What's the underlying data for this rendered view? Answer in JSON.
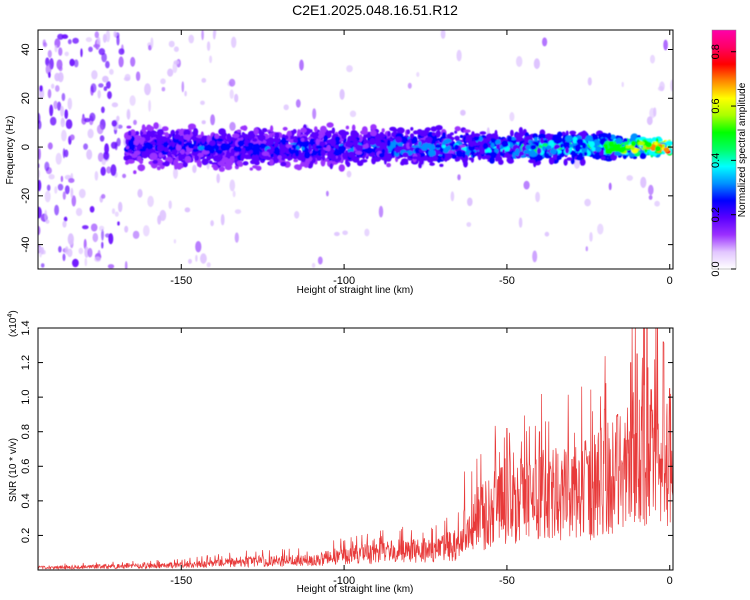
{
  "title": "C2E1.2025.048.16.51.R12",
  "chart_data": [
    {
      "type": "heatmap",
      "xlabel": "Height of straight line (km)",
      "ylabel": "Frequency (Hz)",
      "xlim": [
        -194,
        1
      ],
      "ylim": [
        -50,
        48
      ],
      "xticks": [
        -150,
        -100,
        -50,
        0
      ],
      "yticks": [
        -40,
        -20,
        0,
        20,
        40
      ],
      "colorbar": {
        "label": "Normalized spectral amplitude",
        "range": [
          0,
          0.88
        ],
        "ticks": [
          0.0,
          0.2,
          0.4,
          0.6,
          0.8
        ],
        "colormap": [
          "#ffffff",
          "#e2c6ff",
          "#9b30ff",
          "#5a00ff",
          "#0000ff",
          "#0090ff",
          "#00ffff",
          "#00ff66",
          "#00ff00",
          "#aaff00",
          "#ffff00",
          "#ff8800",
          "#ff0000",
          "#ff0066",
          "#ff00aa"
        ]
      },
      "band": {
        "center_hz": 0,
        "halfwidth_hz": [
          {
            "x": -167,
            "hz": 10
          },
          {
            "x": -100,
            "hz": 9
          },
          {
            "x": -50,
            "hz": 8
          },
          {
            "x": -20,
            "hz": 6
          },
          {
            "x": 0,
            "hz": 4
          }
        ],
        "peak_amplitude": [
          {
            "x": -167,
            "amp": 0.25
          },
          {
            "x": -100,
            "amp": 0.3
          },
          {
            "x": -60,
            "amp": 0.35
          },
          {
            "x": -20,
            "amp": 0.5
          },
          {
            "x": -10,
            "amp": 0.65
          },
          {
            "x": 0,
            "amp": 0.85
          }
        ]
      }
    },
    {
      "type": "line",
      "xlabel": "Height of straight line (km)",
      "ylabel": "SNR (10 * v/v)",
      "yscale_label": "(x10",
      "yscale_exp": "4",
      "xlim": [
        -194,
        1
      ],
      "ylim": [
        0,
        1.4
      ],
      "xticks": [
        -150,
        -100,
        -50,
        0
      ],
      "yticks": [
        0.2,
        0.4,
        0.6,
        0.8,
        1.0,
        1.2,
        1.4
      ],
      "series": [
        {
          "color": "#e83a3a",
          "envelope": [
            {
              "x": -194,
              "y": 0.02
            },
            {
              "x": -170,
              "y": 0.03
            },
            {
              "x": -150,
              "y": 0.04
            },
            {
              "x": -130,
              "y": 0.07
            },
            {
              "x": -110,
              "y": 0.08
            },
            {
              "x": -100,
              "y": 0.12
            },
            {
              "x": -85,
              "y": 0.15
            },
            {
              "x": -70,
              "y": 0.18
            },
            {
              "x": -63,
              "y": 0.22
            },
            {
              "x": -60,
              "y": 0.4
            },
            {
              "x": -55,
              "y": 0.5
            },
            {
              "x": -45,
              "y": 0.58
            },
            {
              "x": -35,
              "y": 0.62
            },
            {
              "x": -25,
              "y": 0.68
            },
            {
              "x": -15,
              "y": 0.8
            },
            {
              "x": -8,
              "y": 1.0
            },
            {
              "x": -5,
              "y": 1.2
            },
            {
              "x": 0,
              "y": 0.95
            }
          ],
          "peaks": [
            {
              "x": -63,
              "y": 0.57
            },
            {
              "x": -50,
              "y": 0.82
            },
            {
              "x": -40,
              "y": 0.8
            },
            {
              "x": -30,
              "y": 0.64
            },
            {
              "x": -20,
              "y": 0.93
            },
            {
              "x": -16,
              "y": 0.9
            },
            {
              "x": -12,
              "y": 1.2
            },
            {
              "x": -10,
              "y": 1.25
            },
            {
              "x": -7,
              "y": 1.42
            },
            {
              "x": -2,
              "y": 1.32
            },
            {
              "x": 0,
              "y": 1.05
            }
          ]
        }
      ]
    }
  ]
}
